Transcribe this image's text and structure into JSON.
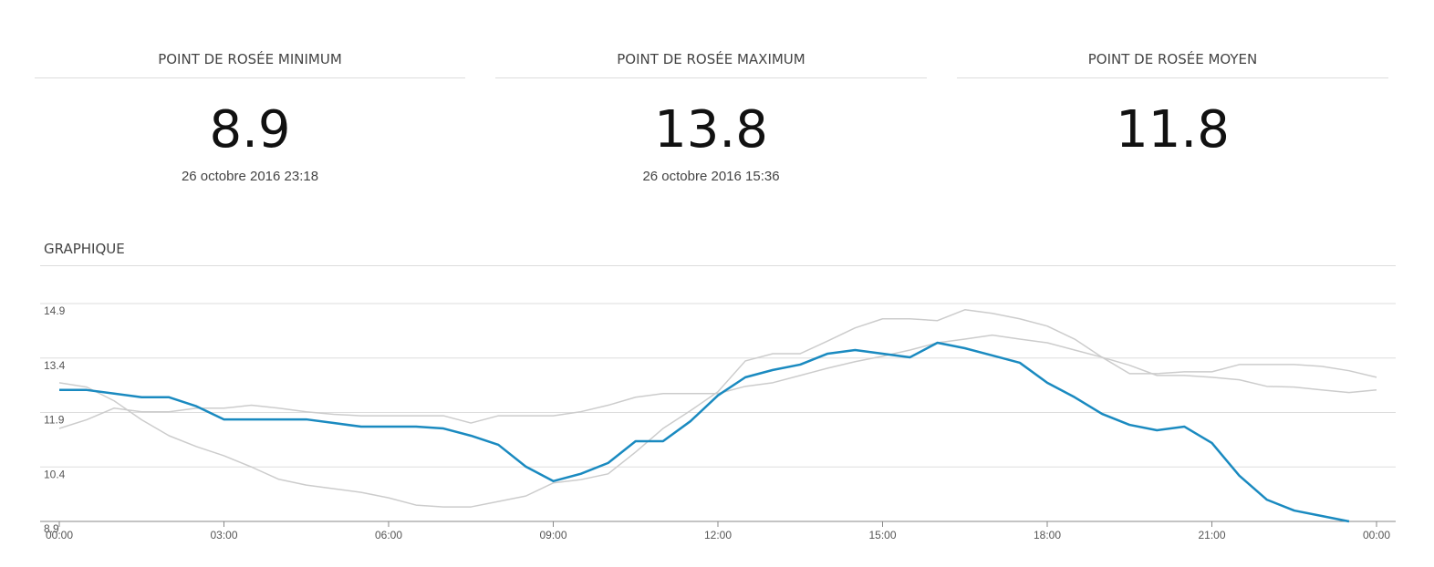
{
  "stats": [
    {
      "title": "POINT DE ROSÉE MINIMUM",
      "value": "8.9",
      "date": "26 octobre 2016 23:18"
    },
    {
      "title": "POINT DE ROSÉE MAXIMUM",
      "value": "13.8",
      "date": "26 octobre 2016 15:36"
    },
    {
      "title": "POINT DE ROSÉE MOYEN",
      "value": "11.8"
    }
  ],
  "section_title": "GRAPHIQUE",
  "chart_data": {
    "type": "line",
    "x": [
      0,
      0.5,
      1,
      1.5,
      2,
      2.5,
      3,
      3.5,
      4,
      4.5,
      5,
      5.5,
      6,
      6.5,
      7,
      7.5,
      8,
      8.5,
      9,
      9.5,
      10,
      10.5,
      11,
      11.5,
      12,
      12.5,
      13,
      13.5,
      14,
      14.5,
      15,
      15.5,
      16,
      16.5,
      17,
      17.5,
      18,
      18.5,
      19,
      19.5,
      20,
      20.5,
      21,
      21.5,
      22,
      22.5,
      23,
      23.5,
      24
    ],
    "series": [
      {
        "color": "#cccccc",
        "values": [
          12.72,
          12.6,
          12.22,
          11.7,
          11.26,
          10.96,
          10.71,
          10.4,
          10.06,
          9.9,
          9.8,
          9.7,
          9.55,
          9.35,
          9.3,
          9.3,
          9.45,
          9.6,
          9.96,
          10.05,
          10.21,
          10.81,
          11.46,
          11.95,
          12.47,
          13.32,
          13.52,
          13.52,
          13.87,
          14.23,
          14.48,
          14.48,
          14.43,
          14.73,
          14.63,
          14.48,
          14.28,
          13.92,
          13.42,
          12.97,
          12.97,
          13.02,
          13.02,
          13.22,
          13.22,
          13.22,
          13.17,
          13.05,
          12.87
        ]
      },
      {
        "color": "#cccccc",
        "values": [
          11.46,
          11.7,
          12.02,
          11.92,
          11.92,
          12.02,
          12.02,
          12.1,
          12.02,
          11.92,
          11.85,
          11.81,
          11.81,
          11.81,
          11.81,
          11.61,
          11.81,
          11.81,
          11.81,
          11.92,
          12.1,
          12.32,
          12.42,
          12.42,
          12.42,
          12.62,
          12.72,
          12.92,
          13.12,
          13.3,
          13.45,
          13.62,
          13.82,
          13.92,
          14.03,
          13.92,
          13.82,
          13.62,
          13.42,
          13.2,
          12.92,
          12.92,
          12.87,
          12.8,
          12.62,
          12.6,
          12.52,
          12.45,
          12.52
        ]
      },
      {
        "color": "#1a8ac0",
        "values": [
          12.52,
          12.52,
          12.42,
          12.32,
          12.32,
          12.07,
          11.71,
          11.71,
          11.71,
          11.71,
          11.61,
          11.51,
          11.51,
          11.51,
          11.46,
          11.26,
          11.01,
          10.41,
          10.01,
          10.21,
          10.51,
          11.11,
          11.11,
          11.66,
          12.37,
          12.87,
          13.07,
          13.22,
          13.52,
          13.62,
          13.52,
          13.42,
          13.82,
          13.67,
          13.47,
          13.27,
          12.72,
          12.32,
          11.86,
          11.56,
          11.41,
          11.51,
          11.06,
          10.16,
          9.5,
          9.2,
          9.05,
          8.9,
          null
        ]
      }
    ],
    "xlim": [
      0,
      24
    ],
    "xticks": [
      {
        "value": 0,
        "label": "00:00"
      },
      {
        "value": 3,
        "label": "03:00"
      },
      {
        "value": 6,
        "label": "06:00"
      },
      {
        "value": 9,
        "label": "09:00"
      },
      {
        "value": 12,
        "label": "12:00"
      },
      {
        "value": 15,
        "label": "15:00"
      },
      {
        "value": 18,
        "label": "18:00"
      },
      {
        "value": 21,
        "label": "21:00"
      },
      {
        "value": 24,
        "label": "00:00"
      }
    ],
    "ylim": [
      8.9,
      14.9
    ],
    "yticks": [
      8.9,
      10.4,
      11.9,
      13.4,
      14.9
    ],
    "grid": true
  }
}
